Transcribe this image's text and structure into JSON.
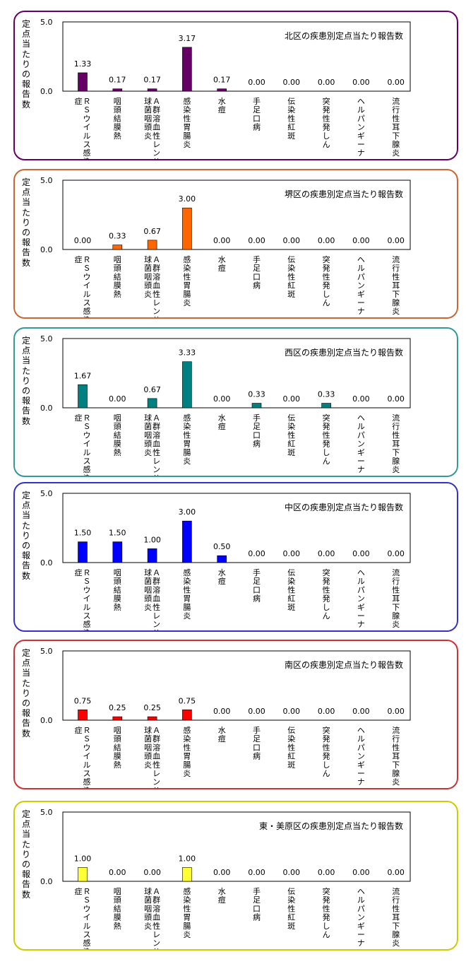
{
  "y_axis_label": "定点当たりの報告数",
  "categories": [
    "ＲＳウイルス感染症",
    "咽頭結膜熱",
    "Ａ群溶血性レンサ球菌咽頭炎",
    "感染性胃腸炎",
    "水痘",
    "手足口病",
    "伝染性紅斑",
    "突発性発しん",
    "ヘルパンギーナ",
    "流行性耳下腺炎"
  ],
  "chart_data": [
    {
      "type": "bar",
      "title": "北区の疾患別定点当たり報告数",
      "color": "#660066",
      "border_color": "#660066",
      "categories": [
        "ＲＳウイルス感染症",
        "咽頭結膜熱",
        "Ａ群溶血性レンサ球菌咽頭炎",
        "感染性胃腸炎",
        "水痘",
        "手足口病",
        "伝染性紅斑",
        "突発性発しん",
        "ヘルパンギーナ",
        "流行性耳下腺炎"
      ],
      "values": [
        1.33,
        0.17,
        0.17,
        3.17,
        0.17,
        0.0,
        0.0,
        0.0,
        0.0,
        0.0
      ],
      "value_labels": [
        "1.33",
        "0.17",
        "0.17",
        "3.17",
        "0.17",
        "0.00",
        "0.00",
        "0.00",
        "0.00",
        "0.00"
      ],
      "yticks": [
        "0.0",
        "5.0"
      ],
      "ylim": [
        0,
        5
      ],
      "ylabel": "定点当たりの報告数"
    },
    {
      "type": "bar",
      "title": "堺区の疾患別定点当たり報告数",
      "color": "#ff6600",
      "border_color": "#cc6633",
      "categories": [
        "ＲＳウイルス感染症",
        "咽頭結膜熱",
        "Ａ群溶血性レンサ球菌咽頭炎",
        "感染性胃腸炎",
        "水痘",
        "手足口病",
        "伝染性紅斑",
        "突発性発しん",
        "ヘルパンギーナ",
        "流行性耳下腺炎"
      ],
      "values": [
        0.0,
        0.33,
        0.67,
        3.0,
        0.0,
        0.0,
        0.0,
        0.0,
        0.0,
        0.0
      ],
      "value_labels": [
        "0.00",
        "0.33",
        "0.67",
        "3.00",
        "0.00",
        "0.00",
        "0.00",
        "0.00",
        "0.00",
        "0.00"
      ],
      "yticks": [
        "0.0",
        "5.0"
      ],
      "ylim": [
        0,
        5
      ],
      "ylabel": "定点当たりの報告数"
    },
    {
      "type": "bar",
      "title": "西区の疾患別定点当たり報告数",
      "color": "#008080",
      "border_color": "#339999",
      "categories": [
        "ＲＳウイルス感染症",
        "咽頭結膜熱",
        "Ａ群溶血性レンサ球菌咽頭炎",
        "感染性胃腸炎",
        "水痘",
        "手足口病",
        "伝染性紅斑",
        "突発性発しん",
        "ヘルパンギーナ",
        "流行性耳下腺炎"
      ],
      "values": [
        1.67,
        0.0,
        0.67,
        3.33,
        0.0,
        0.33,
        0.0,
        0.33,
        0.0,
        0.0
      ],
      "value_labels": [
        "1.67",
        "0.00",
        "0.67",
        "3.33",
        "0.00",
        "0.33",
        "0.00",
        "0.33",
        "0.00",
        "0.00"
      ],
      "yticks": [
        "0.0",
        "5.0"
      ],
      "ylim": [
        0,
        5
      ],
      "ylabel": "定点当たりの報告数"
    },
    {
      "type": "bar",
      "title": "中区の疾患別定点当たり報告数",
      "color": "#0000ff",
      "border_color": "#3333cc",
      "categories": [
        "ＲＳウイルス感染症",
        "咽頭結膜熱",
        "Ａ群溶血性レンサ球菌咽頭炎",
        "感染性胃腸炎",
        "水痘",
        "手足口病",
        "伝染性紅斑",
        "突発性発しん",
        "ヘルパンギーナ",
        "流行性耳下腺炎"
      ],
      "values": [
        1.5,
        1.5,
        1.0,
        3.0,
        0.5,
        0.0,
        0.0,
        0.0,
        0.0,
        0.0
      ],
      "value_labels": [
        "1.50",
        "1.50",
        "1.00",
        "3.00",
        "0.50",
        "0.00",
        "0.00",
        "0.00",
        "0.00",
        "0.00"
      ],
      "yticks": [
        "0.0",
        "5.0"
      ],
      "ylim": [
        0,
        5
      ],
      "ylabel": "定点当たりの報告数"
    },
    {
      "type": "bar",
      "title": "南区の疾患別定点当たり報告数",
      "color": "#ff0000",
      "border_color": "#cc3333",
      "categories": [
        "ＲＳウイルス感染症",
        "咽頭結膜熱",
        "Ａ群溶血性レンサ球菌咽頭炎",
        "感染性胃腸炎",
        "水痘",
        "手足口病",
        "伝染性紅斑",
        "突発性発しん",
        "ヘルパンギーナ",
        "流行性耳下腺炎"
      ],
      "values": [
        0.75,
        0.25,
        0.25,
        0.75,
        0.0,
        0.0,
        0.0,
        0.0,
        0.0,
        0.0
      ],
      "value_labels": [
        "0.75",
        "0.25",
        "0.25",
        "0.75",
        "0.00",
        "0.00",
        "0.00",
        "0.00",
        "0.00",
        "0.00"
      ],
      "yticks": [
        "0.0",
        "5.0"
      ],
      "ylim": [
        0,
        5
      ],
      "ylabel": "定点当たりの報告数"
    },
    {
      "type": "bar",
      "title": "東・美原区の疾患別定点当たり報告数",
      "color": "#ffff33",
      "border_color": "#cccc00",
      "categories": [
        "ＲＳウイルス感染症",
        "咽頭結膜熱",
        "Ａ群溶血性レンサ球菌咽頭炎",
        "感染性胃腸炎",
        "水痘",
        "手足口病",
        "伝染性紅斑",
        "突発性発しん",
        "ヘルパンギーナ",
        "流行性耳下腺炎"
      ],
      "values": [
        1.0,
        0.0,
        0.0,
        1.0,
        0.0,
        0.0,
        0.0,
        0.0,
        0.0,
        0.0
      ],
      "value_labels": [
        "1.00",
        "0.00",
        "0.00",
        "1.00",
        "0.00",
        "0.00",
        "0.00",
        "0.00",
        "0.00",
        "0.00"
      ],
      "yticks": [
        "0.0",
        "5.0"
      ],
      "ylim": [
        0,
        5
      ],
      "ylabel": "定点当たりの報告数"
    }
  ]
}
